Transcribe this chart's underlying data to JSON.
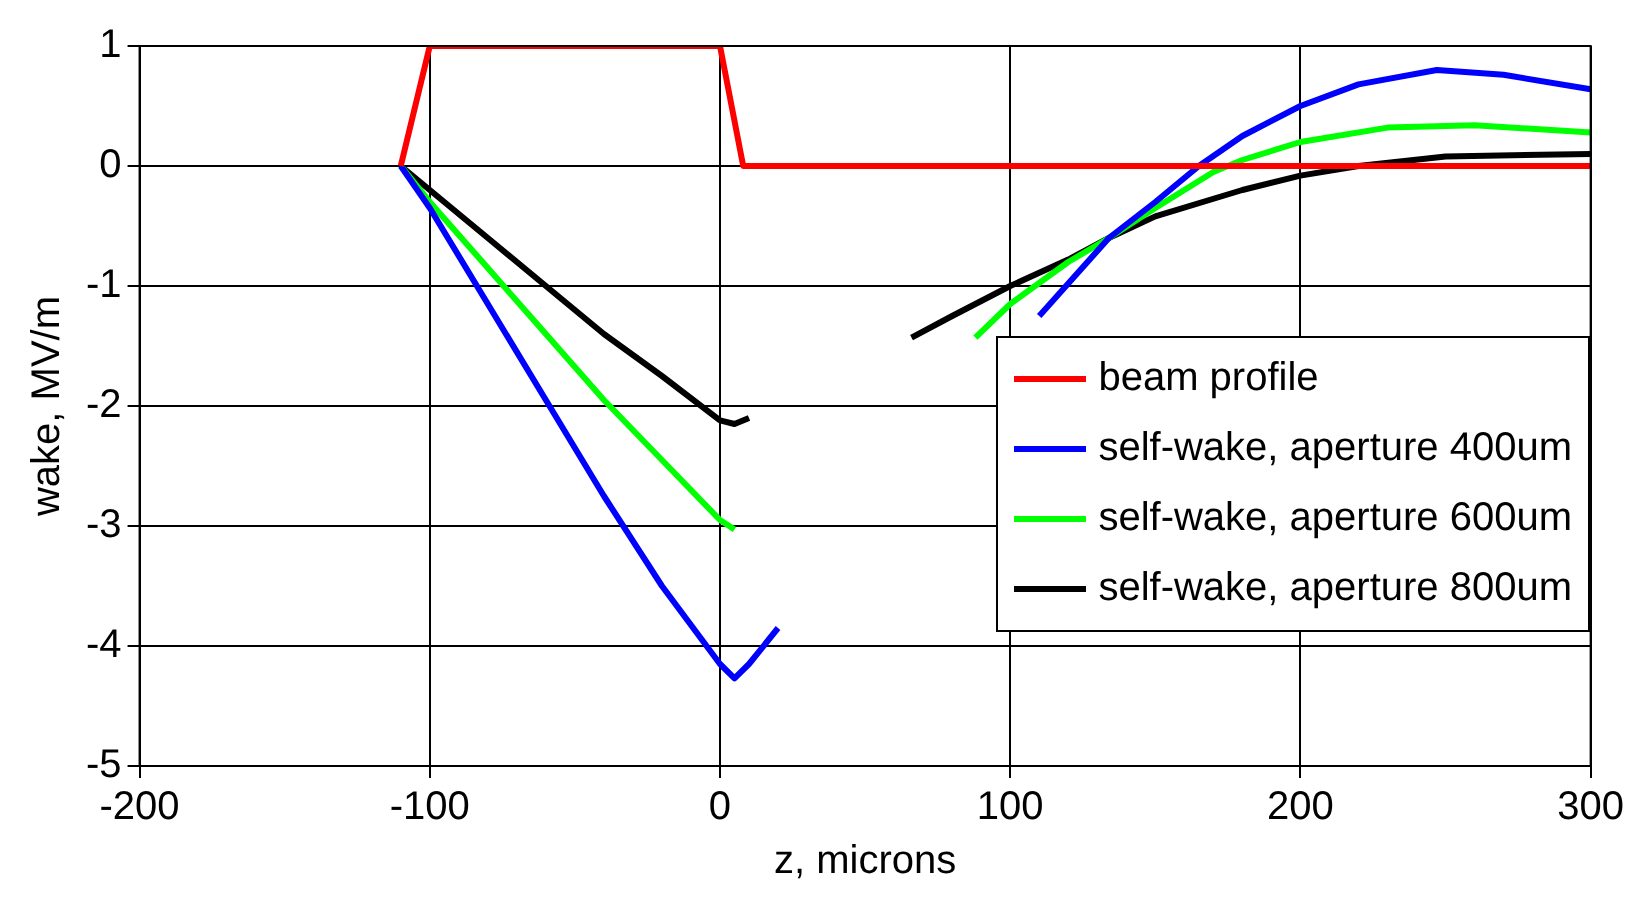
{
  "chart_data": {
    "type": "line",
    "xlabel": "z, microns",
    "ylabel": "wake, MV/m",
    "xlim": [
      -200,
      300
    ],
    "ylim": [
      -5,
      1
    ],
    "xticks": [
      -200,
      -100,
      0,
      100,
      200,
      300
    ],
    "yticks": [
      -5,
      -4,
      -3,
      -2,
      -1,
      0,
      1
    ],
    "grid": true,
    "legend": "right",
    "marker": "none",
    "line_style": "solid",
    "series": [
      {
        "name": "beam profile",
        "color": "#ff0000",
        "x": [
          -110,
          -100,
          0,
          8,
          300
        ],
        "values": [
          0,
          1,
          1,
          0,
          0
        ]
      },
      {
        "name": "self-wake, aperture 400um",
        "color": "#0000ff",
        "x": [
          -110,
          -100,
          -80,
          -60,
          -40,
          -20,
          0,
          5,
          10,
          20,
          40,
          110,
          120,
          134,
          150,
          165,
          180,
          200,
          220,
          247,
          270,
          300
        ],
        "values": [
          0,
          -0.35,
          -1.15,
          -1.95,
          -2.75,
          -3.5,
          -4.15,
          -4.27,
          -4.15,
          -3.85,
          null,
          -1.25,
          -0.98,
          -0.6,
          -0.3,
          0,
          0.25,
          0.5,
          0.68,
          0.8,
          0.76,
          0.64
        ]
      },
      {
        "name": "self-wake, aperture 600um",
        "color": "#00ff00",
        "x": [
          -110,
          -100,
          -80,
          -60,
          -40,
          -20,
          0,
          5,
          40,
          88,
          100,
          120,
          134,
          150,
          170,
          180,
          200,
          230,
          260,
          300
        ],
        "values": [
          0,
          -0.3,
          -0.85,
          -1.4,
          -1.95,
          -2.45,
          -2.95,
          -3.03,
          null,
          -1.43,
          -1.15,
          -0.8,
          -0.6,
          -0.35,
          -0.05,
          0.05,
          0.2,
          0.32,
          0.34,
          0.28
        ]
      },
      {
        "name": "self-wake, aperture 800um",
        "color": "#000000",
        "x": [
          -110,
          -100,
          -80,
          -60,
          -40,
          -20,
          0,
          5,
          10,
          40,
          66,
          80,
          100,
          120,
          134,
          150,
          180,
          200,
          220,
          250,
          300
        ],
        "values": [
          0,
          -0.2,
          -0.6,
          -1.0,
          -1.4,
          -1.75,
          -2.12,
          -2.15,
          -2.1,
          null,
          -1.43,
          -1.25,
          -1.0,
          -0.78,
          -0.6,
          -0.42,
          -0.2,
          -0.08,
          0,
          0.08,
          0.1
        ]
      }
    ]
  }
}
